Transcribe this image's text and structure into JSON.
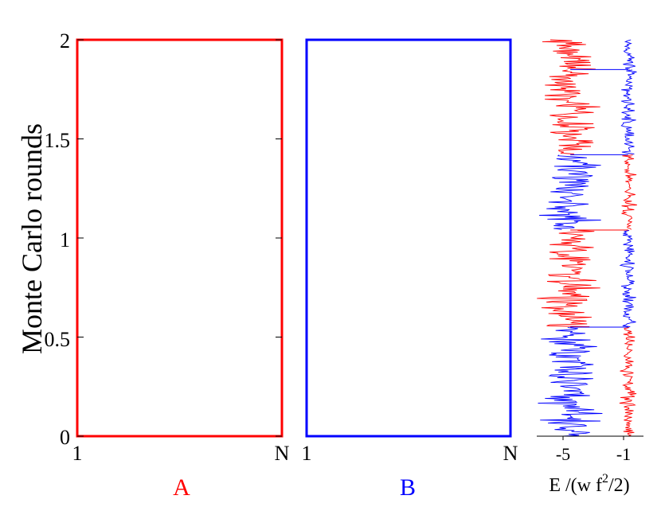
{
  "chart_data": {
    "type": "line",
    "ylabel": "Monte Carlo rounds",
    "ylim": [
      0,
      2
    ],
    "yticks": [
      "0",
      "0.5",
      "1",
      "1.5",
      "2"
    ],
    "panels": [
      {
        "name": "panel-a",
        "label": "A",
        "label_color": "#ff0000",
        "frame_color": "#ff0000",
        "xticks": [
          "1",
          "N"
        ]
      },
      {
        "name": "panel-b",
        "label": "B",
        "label_color": "#0000ff",
        "frame_color": "#0000ff",
        "xticks": [
          "1",
          "N"
        ]
      },
      {
        "name": "panel-energy",
        "xlabel": "E /(w f",
        "xlabel_sup": "2",
        "xlabel_tail": "/2)",
        "xlim": [
          -7,
          0
        ],
        "xticks": [
          {
            "value": -5,
            "label": "-5"
          },
          {
            "value": -1,
            "label": "-1"
          }
        ],
        "series": [
          {
            "color": "#ff0000"
          },
          {
            "color": "#0000ff"
          }
        ],
        "segments": [
          {
            "from": 0.0,
            "to": 0.55,
            "low": "#0000ff",
            "high": "#ff0000"
          },
          {
            "from": 0.55,
            "to": 1.04,
            "low": "#ff0000",
            "high": "#0000ff"
          },
          {
            "from": 1.04,
            "to": 1.42,
            "low": "#0000ff",
            "high": "#ff0000"
          },
          {
            "from": 1.42,
            "to": 1.85,
            "low": "#ff0000",
            "high": "#0000ff"
          },
          {
            "from": 1.85,
            "to": 2.0,
            "low": "#ff0000",
            "high": "#0000ff"
          }
        ],
        "low_level": -4.8,
        "high_level": -1.0,
        "low_spread": 0.85,
        "high_spread": 0.22
      }
    ]
  }
}
